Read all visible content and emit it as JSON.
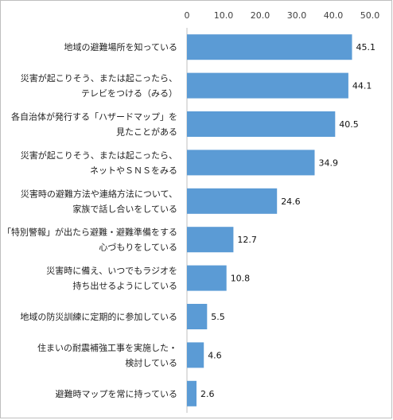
{
  "chart_data": {
    "type": "bar",
    "orientation": "horizontal",
    "title": "",
    "xlabel": "",
    "ylabel": "",
    "xlim": [
      0,
      50
    ],
    "ticks": [
      "0",
      "10.0",
      "20.0",
      "30.0",
      "40.0",
      "50.0"
    ],
    "grid": false,
    "legend": "none",
    "bar_color": "#5b9bd5",
    "categories": [
      [
        "地域の避難場所を知っている"
      ],
      [
        "災害が起こりそう、または起こったら、",
        "テレビをつける（みる）"
      ],
      [
        "各自治体が発行する「ハザードマップ」を",
        "見たことがある"
      ],
      [
        "災害が起こりそう、または起こったら、",
        "ネットやＳＮＳをみる"
      ],
      [
        "災害時の避難方法や連絡方法について、",
        "家族で話し合いをしている"
      ],
      [
        "「特別警報」が出たら避難・避難準備をする",
        "心づもりをしている"
      ],
      [
        "災害時に備え、いつでもラジオを",
        "持ち出せるようにしている"
      ],
      [
        "地域の防災訓練に定期的に参加している"
      ],
      [
        "住まいの耐震補強工事を実施した・",
        "検討している"
      ],
      [
        "避難時マップを常に持っている"
      ]
    ],
    "values": [
      45.1,
      44.1,
      40.5,
      34.9,
      24.6,
      12.7,
      10.8,
      5.5,
      4.6,
      2.6
    ],
    "value_labels": [
      "45.1",
      "44.1",
      "40.5",
      "34.9",
      "24.6",
      "12.7",
      "10.8",
      "5.5",
      "4.6",
      "2.6"
    ]
  }
}
